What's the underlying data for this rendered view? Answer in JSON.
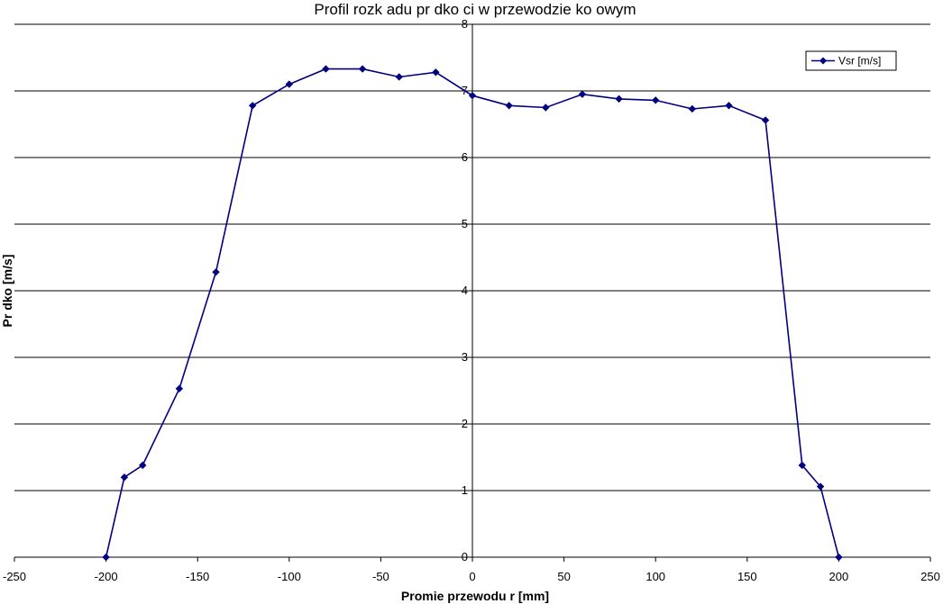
{
  "chart_data": {
    "type": "line",
    "title": "Profil rozk adu pr  dko  ci w przewodzie ko owym",
    "xlabel": "Promie   przewodu r [mm]",
    "ylabel": "Pr  dko    [m/s]",
    "xlim": [
      -250,
      250
    ],
    "ylim": [
      0,
      8
    ],
    "x_ticks": [
      -250,
      -200,
      -150,
      -100,
      -50,
      0,
      50,
      100,
      150,
      200,
      250
    ],
    "y_ticks": [
      0,
      1,
      2,
      3,
      4,
      5,
      6,
      7,
      8
    ],
    "grid": "horizontal",
    "legend_position": "top-right",
    "series": [
      {
        "name": "Vsr [m/s]",
        "color": "#000080",
        "marker": "diamond",
        "x": [
          -200,
          -190,
          -180,
          -160,
          -140,
          -120,
          -100,
          -80,
          -60,
          -40,
          -20,
          0,
          20,
          40,
          60,
          80,
          100,
          120,
          140,
          160,
          180,
          190,
          200
        ],
        "y": [
          0,
          1.2,
          1.38,
          2.53,
          4.28,
          6.78,
          7.1,
          7.33,
          7.33,
          7.21,
          7.28,
          6.93,
          6.78,
          6.75,
          6.95,
          6.88,
          6.86,
          6.73,
          6.78,
          6.56,
          1.38,
          1.06,
          0
        ]
      }
    ]
  }
}
